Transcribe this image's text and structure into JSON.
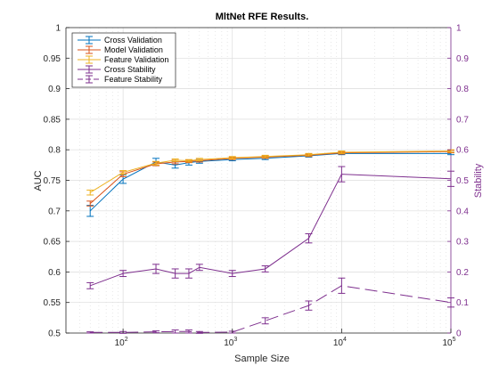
{
  "chart_data": {
    "type": "line",
    "title": "MltNet RFE Results.",
    "xlabel": "Sample Size",
    "ylabel": "AUC",
    "ylabel_right": "Stability",
    "xscale": "log",
    "xlim": [
      30,
      100000
    ],
    "ylim": [
      0.5,
      1
    ],
    "ylim_right": [
      0,
      1
    ],
    "grid": "on",
    "legend_placement": "top-left",
    "x_ticks": [
      100,
      1000,
      10000,
      100000
    ],
    "x_tick_labels": [
      {
        "base": "10",
        "exp": "2"
      },
      {
        "base": "10",
        "exp": "3"
      },
      {
        "base": "10",
        "exp": "4"
      },
      {
        "base": "10",
        "exp": "5"
      }
    ],
    "y_ticks": [
      "0.5",
      "0.55",
      "0.6",
      "0.65",
      "0.7",
      "0.75",
      "0.8",
      "0.85",
      "0.9",
      "0.95",
      "1"
    ],
    "y_ticks_right": [
      "0",
      "0.1",
      "0.2",
      "0.3",
      "0.4",
      "0.5",
      "0.6",
      "0.7",
      "0.8",
      "0.9",
      "1"
    ],
    "x": [
      50,
      100,
      200,
      300,
      400,
      500,
      1000,
      2000,
      5000,
      10000,
      100000
    ],
    "series": [
      {
        "name": "Cross Validation",
        "axis": "left",
        "style": "solid",
        "color": "#0072bd",
        "values": [
          0.7,
          0.752,
          0.78,
          0.775,
          0.779,
          0.781,
          0.784,
          0.786,
          0.79,
          0.794,
          0.794
        ],
        "errors": [
          0.009,
          0.007,
          0.006,
          0.005,
          0.004,
          0.003,
          0.002,
          0.002,
          0.002,
          0.002,
          0.002
        ]
      },
      {
        "name": "Model Validation",
        "axis": "left",
        "style": "solid",
        "color": "#d95319",
        "values": [
          0.712,
          0.76,
          0.777,
          0.78,
          0.781,
          0.782,
          0.786,
          0.788,
          0.791,
          0.795,
          0.797
        ],
        "errors": [
          0.004,
          0.004,
          0.003,
          0.003,
          0.002,
          0.002,
          0.002,
          0.002,
          0.002,
          0.002,
          0.002
        ]
      },
      {
        "name": "Feature Validation",
        "axis": "left",
        "style": "solid",
        "color": "#edb120",
        "values": [
          0.73,
          0.763,
          0.778,
          0.783,
          0.782,
          0.784,
          0.787,
          0.789,
          0.792,
          0.796,
          0.798
        ],
        "errors": [
          0.004,
          0.003,
          0.003,
          0.002,
          0.002,
          0.002,
          0.002,
          0.002,
          0.002,
          0.002,
          0.002
        ]
      },
      {
        "name": "Cross Stability",
        "axis": "right",
        "style": "solid",
        "color": "#7e2f8e",
        "values": [
          0.155,
          0.195,
          0.21,
          0.195,
          0.195,
          0.215,
          0.195,
          0.21,
          0.31,
          0.52,
          0.505
        ],
        "errors": [
          0.01,
          0.01,
          0.015,
          0.015,
          0.015,
          0.01,
          0.01,
          0.01,
          0.015,
          0.025,
          0.025
        ]
      },
      {
        "name": "Feature Stability",
        "axis": "right",
        "style": "dashed",
        "color": "#7e2f8e",
        "values": [
          0.002,
          0.002,
          0.004,
          0.005,
          0.005,
          0.002,
          0.003,
          0.04,
          0.09,
          0.155,
          0.1
        ],
        "errors": [
          0.002,
          0.003,
          0.003,
          0.005,
          0.005,
          0.003,
          0.003,
          0.01,
          0.015,
          0.025,
          0.015
        ]
      }
    ]
  }
}
